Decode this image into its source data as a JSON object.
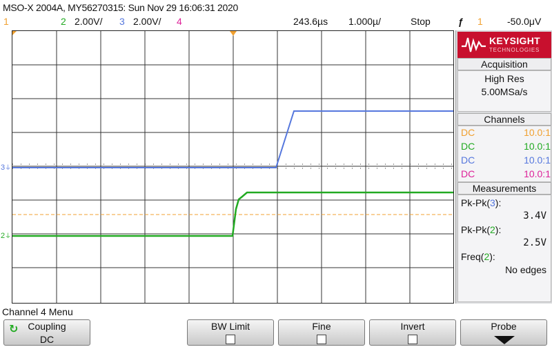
{
  "header": {
    "title": "MSO-X 2004A, MY56270315: Sun Nov 29 16:06:31 2020"
  },
  "status": {
    "ch1_num": "1",
    "ch2_num": "2",
    "ch2_scale": "2.00V/",
    "ch3_num": "3",
    "ch3_scale": "2.00V/",
    "ch4_num": "4",
    "time_offset": "243.6µs",
    "time_scale": "1.000µ/",
    "run_state": "Stop",
    "trigger_symbol": "ƒ",
    "trigger_source": "1",
    "trigger_level": "-50.0μV"
  },
  "logo": {
    "brand": "KEYSIGHT",
    "sub": "TECHNOLOGIES"
  },
  "acquisition": {
    "heading": "Acquisition",
    "mode": "High Res",
    "rate": "5.00MSa/s"
  },
  "channels": {
    "heading": "Channels",
    "rows": [
      {
        "coupling": "DC",
        "ratio": "10.0:1",
        "color": "#f0a030"
      },
      {
        "coupling": "DC",
        "ratio": "10.0:1",
        "color": "#22aa22"
      },
      {
        "coupling": "DC",
        "ratio": "10.0:1",
        "color": "#5577dd"
      },
      {
        "coupling": "DC",
        "ratio": "10.0:1",
        "color": "#dd2299"
      }
    ]
  },
  "measurements": {
    "heading": "Measurements",
    "items": [
      {
        "label": "Pk-Pk(3):",
        "value": "3.4V"
      },
      {
        "label": "Pk-Pk(2):",
        "value": "2.5V"
      },
      {
        "label": "Freq(2):",
        "value": "No edges"
      }
    ]
  },
  "softkeys": {
    "menu_title": "Channel 4 Menu",
    "coupling_label": "Coupling",
    "coupling_value": "DC",
    "bw_limit_label": "BW Limit",
    "fine_label": "Fine",
    "invert_label": "Invert",
    "probe_label": "Probe"
  },
  "colors": {
    "ch1": "#f0a030",
    "ch2": "#22aa22",
    "ch3": "#5577dd",
    "ch4": "#dd2299",
    "brand": "#c8102e"
  }
}
